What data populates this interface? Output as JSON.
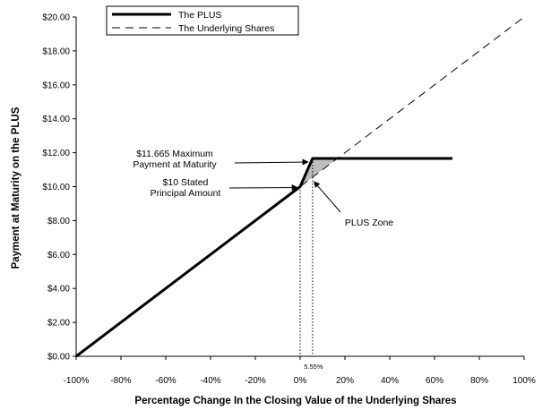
{
  "chart_data": {
    "type": "line",
    "xlabel": "Percentage Change In the Closing Value of the Underlying Shares",
    "ylabel": "Payment at Maturity on the PLUS",
    "xlim": [
      -100,
      100
    ],
    "ylim": [
      0,
      20
    ],
    "x_ticks": [
      -100,
      -80,
      -60,
      -40,
      -20,
      0,
      20,
      40,
      60,
      80,
      100
    ],
    "x_tick_labels": [
      "-100%",
      "-80%",
      "-60%",
      "-40%",
      "-20%",
      "0%",
      "20%",
      "40%",
      "60%",
      "80%",
      "100%"
    ],
    "y_ticks": [
      0,
      2,
      4,
      6,
      8,
      10,
      12,
      14,
      16,
      18,
      20
    ],
    "y_tick_labels": [
      "$0.00",
      "$2.00",
      "$4.00",
      "$6.00",
      "$8.00",
      "$10.00",
      "$12.00",
      "$14.00",
      "$16.00",
      "$18.00",
      "$20.00"
    ],
    "legend_position": "top-left",
    "series": [
      {
        "name": "The PLUS",
        "style": "solid-thick",
        "color": "#000000",
        "points": [
          [
            -100,
            0
          ],
          [
            0,
            10
          ],
          [
            5.55,
            11.665
          ],
          [
            68,
            11.665
          ]
        ]
      },
      {
        "name": "The Underlying Shares",
        "style": "dashed",
        "color": "#000000",
        "points": [
          [
            -100,
            0
          ],
          [
            100,
            20
          ]
        ]
      }
    ],
    "shaded_region": {
      "color": "#bdbdbd",
      "points": [
        [
          0,
          10
        ],
        [
          5.55,
          11.665
        ],
        [
          16.65,
          11.665
        ]
      ]
    },
    "reference_lines": [
      {
        "x": 0,
        "y_to": 10,
        "style": "dotted"
      },
      {
        "x": 5.55,
        "y_to": 11.665,
        "style": "dotted"
      }
    ],
    "annotations": [
      {
        "lines": [
          "$11.665 Maximum",
          "Payment at Maturity"
        ],
        "arrow_to": [
          5.55,
          11.665
        ]
      },
      {
        "lines": [
          "$10 Stated",
          "Principal Amount"
        ],
        "arrow_to": [
          0,
          10
        ]
      },
      {
        "lines": [
          "PLUS Zone"
        ],
        "arrow_to": [
          5,
          10.4
        ]
      },
      {
        "lines": [
          "5.55%"
        ],
        "at_x": 5.55
      }
    ]
  }
}
